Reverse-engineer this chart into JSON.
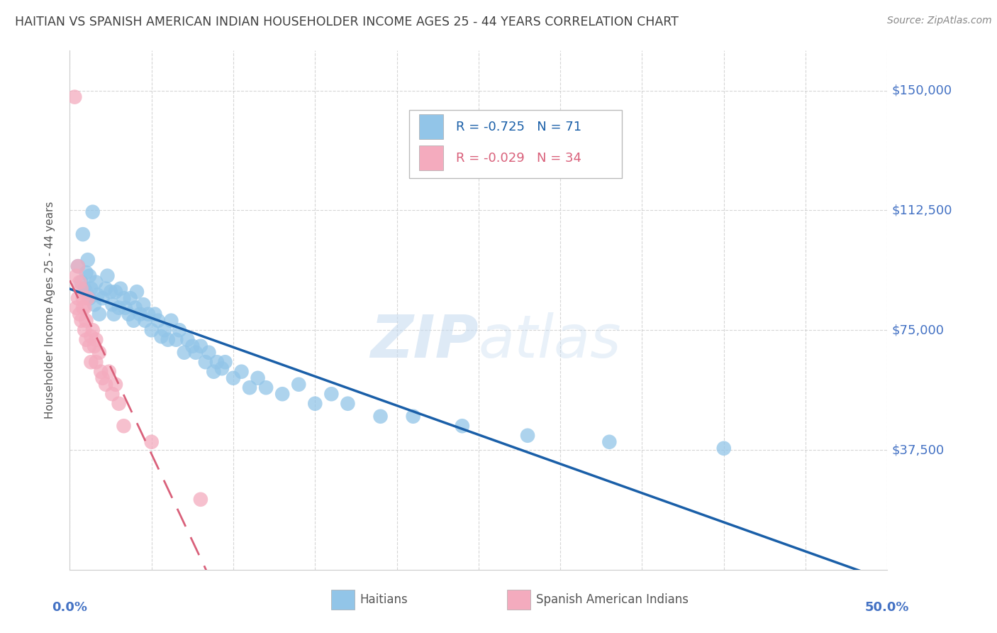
{
  "title": "HAITIAN VS SPANISH AMERICAN INDIAN HOUSEHOLDER INCOME AGES 25 - 44 YEARS CORRELATION CHART",
  "source": "Source: ZipAtlas.com",
  "ylabel": "Householder Income Ages 25 - 44 years",
  "ytick_labels": [
    "$150,000",
    "$112,500",
    "$75,000",
    "$37,500"
  ],
  "ytick_values": [
    150000,
    112500,
    75000,
    37500
  ],
  "ymin": 0,
  "ymax": 162500,
  "xmin": 0.0,
  "xmax": 0.5,
  "watermark": "ZIPatlas",
  "legend_blue_r": "-0.725",
  "legend_blue_n": "71",
  "legend_pink_r": "-0.029",
  "legend_pink_n": "34",
  "blue_scatter_color": "#92C5E8",
  "pink_scatter_color": "#F4ABBE",
  "blue_line_color": "#1A5FA8",
  "pink_line_color": "#D9607A",
  "title_color": "#404040",
  "axis_label_color": "#4472C4",
  "ytick_color": "#4472C4",
  "grid_color": "#CCCCCC",
  "haitians_x": [
    0.005,
    0.007,
    0.008,
    0.009,
    0.01,
    0.01,
    0.011,
    0.012,
    0.012,
    0.013,
    0.014,
    0.015,
    0.016,
    0.017,
    0.018,
    0.02,
    0.022,
    0.023,
    0.025,
    0.026,
    0.027,
    0.028,
    0.03,
    0.031,
    0.033,
    0.034,
    0.036,
    0.037,
    0.039,
    0.04,
    0.041,
    0.043,
    0.045,
    0.046,
    0.048,
    0.05,
    0.052,
    0.054,
    0.056,
    0.058,
    0.06,
    0.062,
    0.065,
    0.067,
    0.07,
    0.072,
    0.075,
    0.077,
    0.08,
    0.083,
    0.085,
    0.088,
    0.09,
    0.093,
    0.095,
    0.1,
    0.105,
    0.11,
    0.115,
    0.12,
    0.13,
    0.14,
    0.15,
    0.16,
    0.17,
    0.19,
    0.21,
    0.24,
    0.28,
    0.33,
    0.4
  ],
  "haitians_y": [
    95000,
    90000,
    105000,
    88000,
    93000,
    87000,
    97000,
    92000,
    85000,
    88000,
    112000,
    83000,
    90000,
    86000,
    80000,
    85000,
    88000,
    92000,
    87000,
    83000,
    80000,
    87000,
    82000,
    88000,
    85000,
    82000,
    80000,
    85000,
    78000,
    82000,
    87000,
    80000,
    83000,
    78000,
    80000,
    75000,
    80000,
    78000,
    73000,
    75000,
    72000,
    78000,
    72000,
    75000,
    68000,
    72000,
    70000,
    68000,
    70000,
    65000,
    68000,
    62000,
    65000,
    63000,
    65000,
    60000,
    62000,
    57000,
    60000,
    57000,
    55000,
    58000,
    52000,
    55000,
    52000,
    48000,
    48000,
    45000,
    42000,
    40000,
    38000
  ],
  "spanish_x": [
    0.003,
    0.004,
    0.004,
    0.005,
    0.005,
    0.006,
    0.006,
    0.007,
    0.007,
    0.008,
    0.008,
    0.009,
    0.009,
    0.01,
    0.01,
    0.011,
    0.012,
    0.013,
    0.013,
    0.014,
    0.015,
    0.016,
    0.016,
    0.018,
    0.019,
    0.02,
    0.022,
    0.024,
    0.026,
    0.028,
    0.03,
    0.033,
    0.05,
    0.08
  ],
  "spanish_y": [
    148000,
    92000,
    82000,
    95000,
    85000,
    80000,
    90000,
    78000,
    88000,
    82000,
    85000,
    75000,
    82000,
    78000,
    72000,
    85000,
    70000,
    73000,
    65000,
    75000,
    70000,
    72000,
    65000,
    68000,
    62000,
    60000,
    58000,
    62000,
    55000,
    58000,
    52000,
    45000,
    40000,
    22000
  ]
}
